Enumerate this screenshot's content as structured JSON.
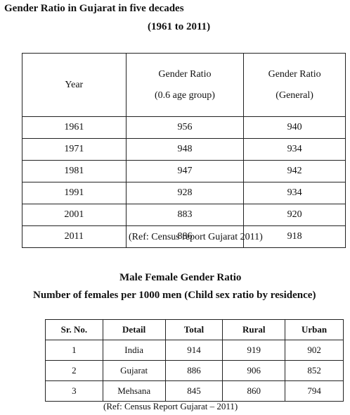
{
  "section1": {
    "title": "Gender Ratio in Gujarat in five decades",
    "subtitle": "(1961 to 2011)",
    "headers": {
      "year": "Year",
      "col2_line1": "Gender Ratio",
      "col2_line2": "(0.6 age group)",
      "col3_line1": "Gender Ratio",
      "col3_line2": "(General)"
    },
    "rows": [
      {
        "year": "1961",
        "ratio_child": "956",
        "ratio_general": "940"
      },
      {
        "year": "1971",
        "ratio_child": "948",
        "ratio_general": "934"
      },
      {
        "year": "1981",
        "ratio_child": "947",
        "ratio_general": "942"
      },
      {
        "year": "1991",
        "ratio_child": "928",
        "ratio_general": "934"
      },
      {
        "year": "2001",
        "ratio_child": "883",
        "ratio_general": "920"
      },
      {
        "year": "2011",
        "ratio_child": "886",
        "ratio_general": "918"
      }
    ],
    "reference": "(Ref: Census report Gujarat 2011)"
  },
  "section2": {
    "title": "Male Female Gender Ratio",
    "subtitle": "Number of females per 1000 men (Child sex ratio by residence)",
    "headers": {
      "sr": "Sr. No.",
      "detail": "Detail",
      "total": "Total",
      "rural": "Rural",
      "urban": "Urban"
    },
    "rows": [
      {
        "sr": "1",
        "detail": "India",
        "total": "914",
        "rural": "919",
        "urban": "902"
      },
      {
        "sr": "2",
        "detail": "Gujarat",
        "total": "886",
        "rural": "906",
        "urban": "852"
      },
      {
        "sr": "3",
        "detail": "Mehsana",
        "total": "845",
        "rural": "860",
        "urban": "794"
      }
    ],
    "reference": "(Ref: Census Report Gujarat – 2011)"
  }
}
